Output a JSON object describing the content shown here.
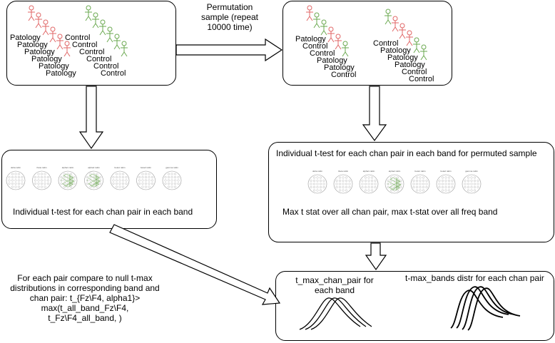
{
  "colors": {
    "patology": "#e06666",
    "control": "#6aa84f",
    "stroke": "#000000"
  },
  "top_left": {
    "patology_labels": [
      "Patology",
      "Patology",
      "Patology",
      "Patology",
      "Patology",
      "Patology"
    ],
    "control_labels": [
      "Control",
      "Control",
      "Control",
      "Control",
      "Control",
      "Control"
    ]
  },
  "permutation_note": "Permutation sample (repeat 10000 time)",
  "top_right": {
    "left_group": [
      "Patology",
      "Control",
      "Control",
      "Patology",
      "Patology",
      "Control"
    ],
    "right_group": [
      "Control",
      "Patology",
      "Patology",
      "Patology",
      "Control",
      "Control"
    ]
  },
  "mid_left": {
    "bands": [
      "delta rattin",
      "theta rattin",
      "alpha1 rattin",
      "alpha2 rattin",
      "beta1 rattin",
      "beta2 rattin",
      "gamma rattin"
    ],
    "caption": "Individual t-test for each chan pair in each band"
  },
  "mid_right": {
    "title": "Individual t-test for each chan pair in each band for permuted sample",
    "bands": [
      "delta rattin",
      "theta rattin",
      "alpha1 rattin",
      "alpha2 rattin",
      "beta1 rattin",
      "beta2 rattin",
      "gamma rattin"
    ],
    "caption": "Max t stat over all chan pair, max t-stat over all freq band"
  },
  "compare_text": "For each pair compare to null t-max distributions in corresponding band and chan pair: t_{Fz\\F4, alpha1}> max(t_all_band_Fz\\F4, t_Fz\\F4_all_band, )",
  "bottom_right": {
    "label_left": "t_max_chan_pair for each band",
    "label_right": "t-max_bands distr for each chan pair"
  }
}
